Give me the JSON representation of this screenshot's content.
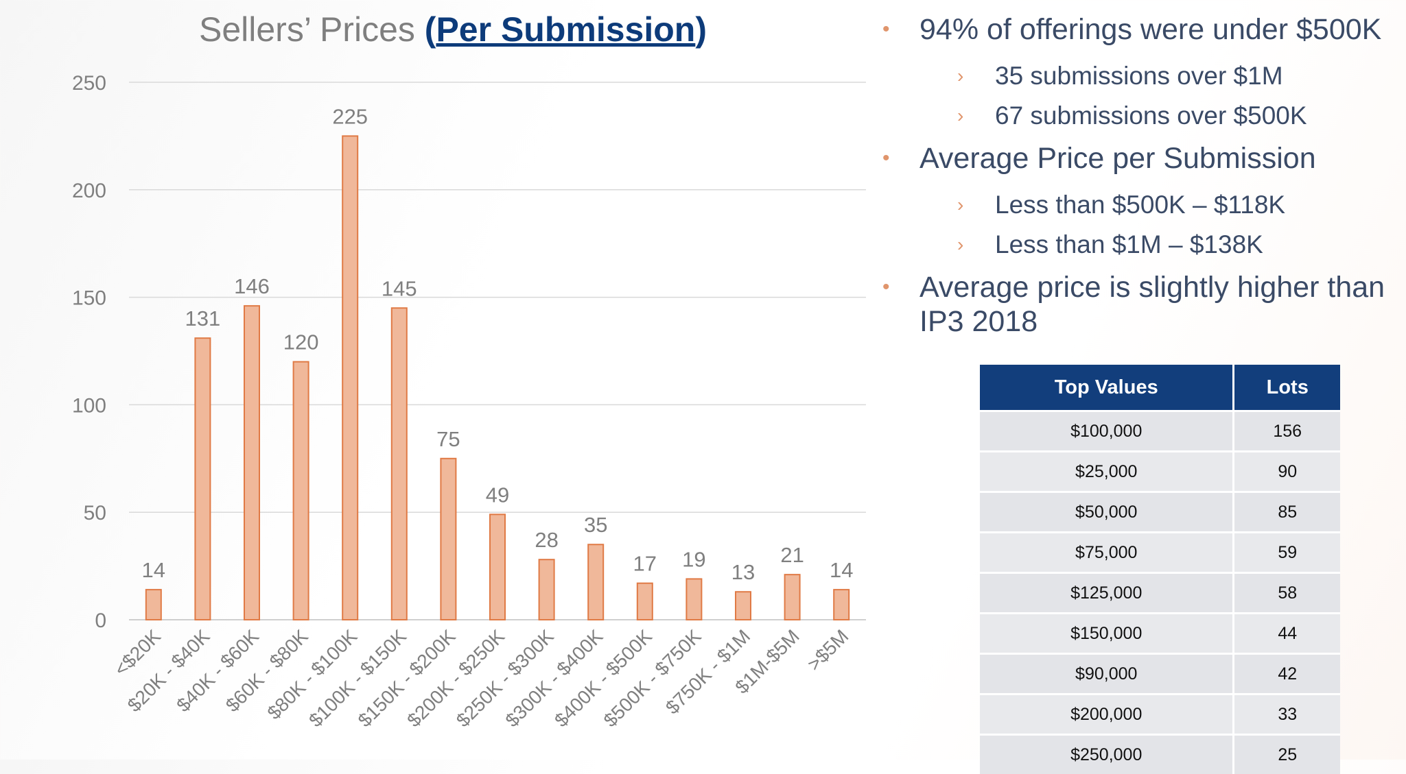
{
  "chart_data": {
    "type": "bar",
    "title": "Sellers’ Prices",
    "title_link": "Per Submission",
    "categories": [
      "<$20K",
      "$20K - $40K",
      "$40K - $60K",
      "$60K - $80K",
      "$80K - $100K",
      "$100K - $150K",
      "$150K - $200K",
      "$200K - $250K",
      "$250K - $300K",
      "$300K - $400K",
      "$400K - $500K",
      "$500K - $750K",
      "$750K - $1M",
      "$1M-$5M",
      ">$5M"
    ],
    "values": [
      14,
      131,
      146,
      120,
      225,
      145,
      75,
      49,
      28,
      35,
      17,
      19,
      13,
      21,
      14
    ],
    "ylim": [
      0,
      250
    ],
    "yticks": [
      0,
      50,
      100,
      150,
      200,
      250
    ],
    "grid": true,
    "data_labels": true,
    "bar_color": "#f0b89a",
    "bar_stroke": "#e07a45"
  },
  "bullets": [
    {
      "text": "94% of offerings were under $500K",
      "subs": [
        "35 submissions over $1M",
        "67 submissions over $500K"
      ]
    },
    {
      "text": "Average Price per Submission",
      "subs": [
        "Less than $500K – $118K",
        "Less than $1M – $138K"
      ]
    },
    {
      "text": "Average price is slightly higher than IP3 2018",
      "subs": []
    }
  ],
  "table": {
    "headers": [
      "Top Values",
      "Lots"
    ],
    "rows": [
      [
        "$100,000",
        "156"
      ],
      [
        "$25,000",
        "90"
      ],
      [
        "$50,000",
        "85"
      ],
      [
        "$75,000",
        "59"
      ],
      [
        "$125,000",
        "58"
      ],
      [
        "$150,000",
        "44"
      ],
      [
        "$90,000",
        "42"
      ],
      [
        "$200,000",
        "33"
      ],
      [
        "$250,000",
        "25"
      ]
    ]
  },
  "colors": {
    "accent": "#e0956c",
    "header": "#123e7c",
    "text": "#3a4a66"
  }
}
